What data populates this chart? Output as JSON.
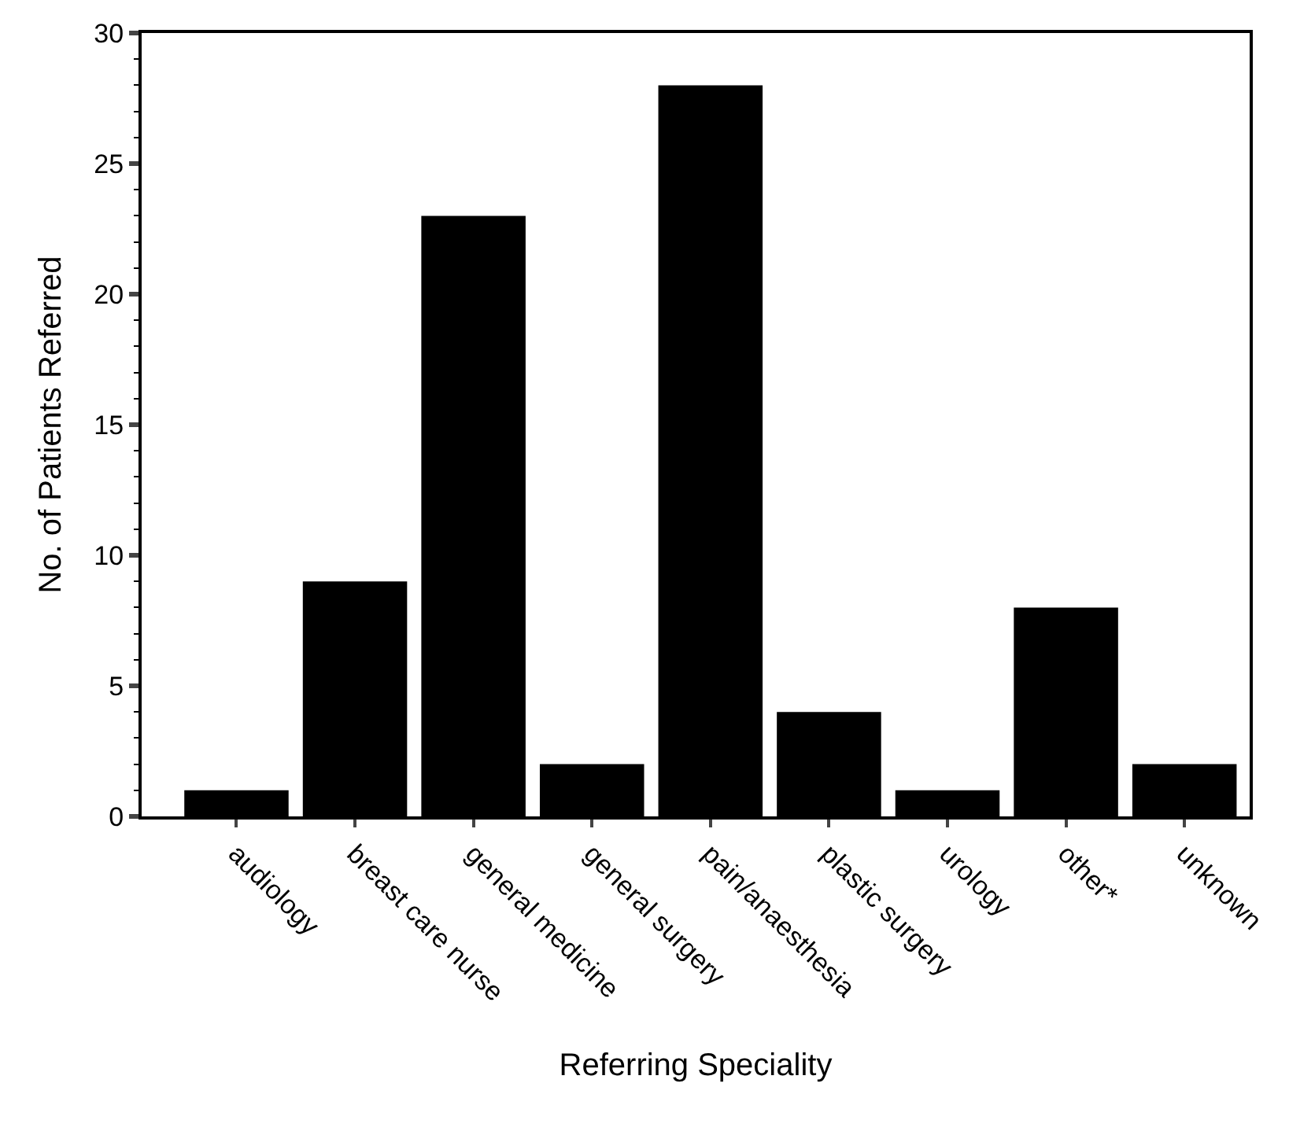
{
  "chart_data": {
    "type": "bar",
    "xlabel": "Referring Speciality",
    "ylabel": "No. of Patients Referred",
    "categories": [
      "audiology",
      "breast care nurse",
      "general medicine",
      "general surgery",
      "pain/anaesthesia",
      "plastic surgery",
      "urology",
      "other*",
      "unknown"
    ],
    "values": [
      1,
      9,
      23,
      2,
      28,
      4,
      1,
      8,
      2
    ],
    "color": "#000000",
    "ylim": [
      0,
      30
    ],
    "yticks": [
      0,
      5,
      10,
      15,
      20,
      25,
      30
    ]
  }
}
